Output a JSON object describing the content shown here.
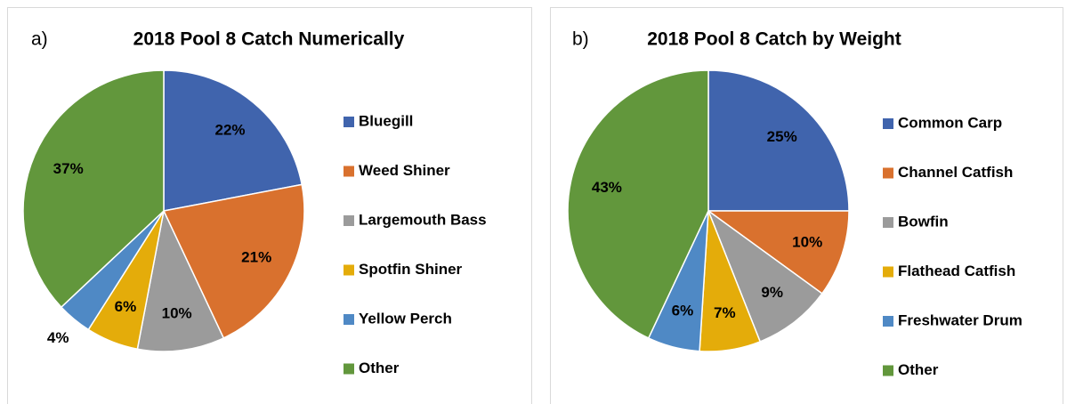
{
  "chart_data": [
    {
      "type": "pie",
      "panel_label": "a)",
      "title": "2018 Pool 8 Catch Numerically",
      "categories": [
        "Bluegill",
        "Weed Shiner",
        "Largemouth Bass",
        "Spotfin Shiner",
        "Yellow Perch",
        "Other"
      ],
      "values": [
        22,
        21,
        10,
        6,
        4,
        37
      ],
      "value_labels": [
        "22%",
        "21%",
        "10%",
        "6%",
        "4%",
        "37%"
      ],
      "colors": [
        "#4064ad",
        "#d9712e",
        "#9b9b9b",
        "#e4ac0a",
        "#4f89c5",
        "#62973c"
      ],
      "legend": "right"
    },
    {
      "type": "pie",
      "panel_label": "b)",
      "title": "2018 Pool 8 Catch by Weight",
      "categories": [
        "Common Carp",
        "Channel Catfish",
        "Bowfin",
        "Flathead Catfish",
        "Freshwater Drum",
        "Other"
      ],
      "values": [
        25,
        10,
        9,
        7,
        6,
        43
      ],
      "value_labels": [
        "25%",
        "10%",
        "9%",
        "7%",
        "6%",
        "43%"
      ],
      "colors": [
        "#4064ad",
        "#d9712e",
        "#9b9b9b",
        "#e4ac0a",
        "#4f89c5",
        "#62973c"
      ],
      "legend": "right"
    }
  ]
}
